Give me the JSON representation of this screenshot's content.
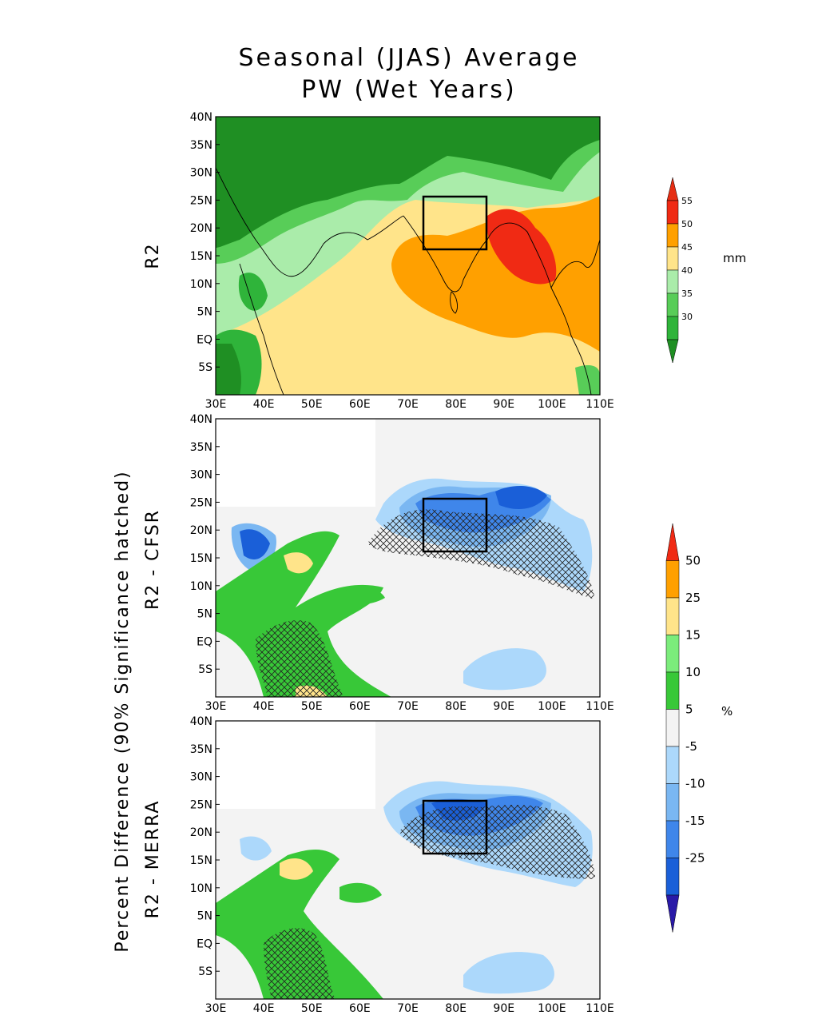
{
  "title": {
    "line1": "Seasonal (JJAS) Average",
    "line2": "PW (Wet Years)"
  },
  "panels": [
    {
      "label": "R2"
    },
    {
      "label": "R2 - CFSR"
    },
    {
      "label": "R2 - MERRA"
    }
  ],
  "group_label": "Percent Difference (90% Significance hatched)",
  "axes": {
    "lon_labels": [
      "30E",
      "40E",
      "50E",
      "60E",
      "70E",
      "80E",
      "90E",
      "100E",
      "110E"
    ],
    "lat_labels": [
      "40N",
      "35N",
      "30N",
      "25N",
      "20N",
      "15N",
      "10N",
      "5N",
      "EQ",
      "5S"
    ],
    "lon_range": [
      30,
      110
    ],
    "lat_range": [
      -10,
      40
    ]
  },
  "study_box": {
    "lon": [
      73,
      86
    ],
    "lat": [
      16,
      26
    ]
  },
  "colorbar_pw": {
    "unit": "mm",
    "levels": [
      "30",
      "35",
      "40",
      "45",
      "50",
      "55"
    ],
    "colors": [
      "#1f8f23",
      "#2fb43a",
      "#58cd58",
      "#aaecaa",
      "#ffe48a",
      "#ffa000",
      "#f02a14",
      "#e62d12"
    ]
  },
  "colorbar_diff": {
    "unit": "%",
    "levels": [
      "-25",
      "-15",
      "-10",
      "-5",
      "5",
      "10",
      "15",
      "25",
      "50"
    ],
    "colors": [
      "#2a1aa8",
      "#1a5fd8",
      "#3f86ea",
      "#7ab7f2",
      "#acd8fb",
      "#f3f3f3",
      "#38c838",
      "#7bec7b",
      "#ffe48a",
      "#ffa000",
      "#f02a14"
    ]
  }
}
